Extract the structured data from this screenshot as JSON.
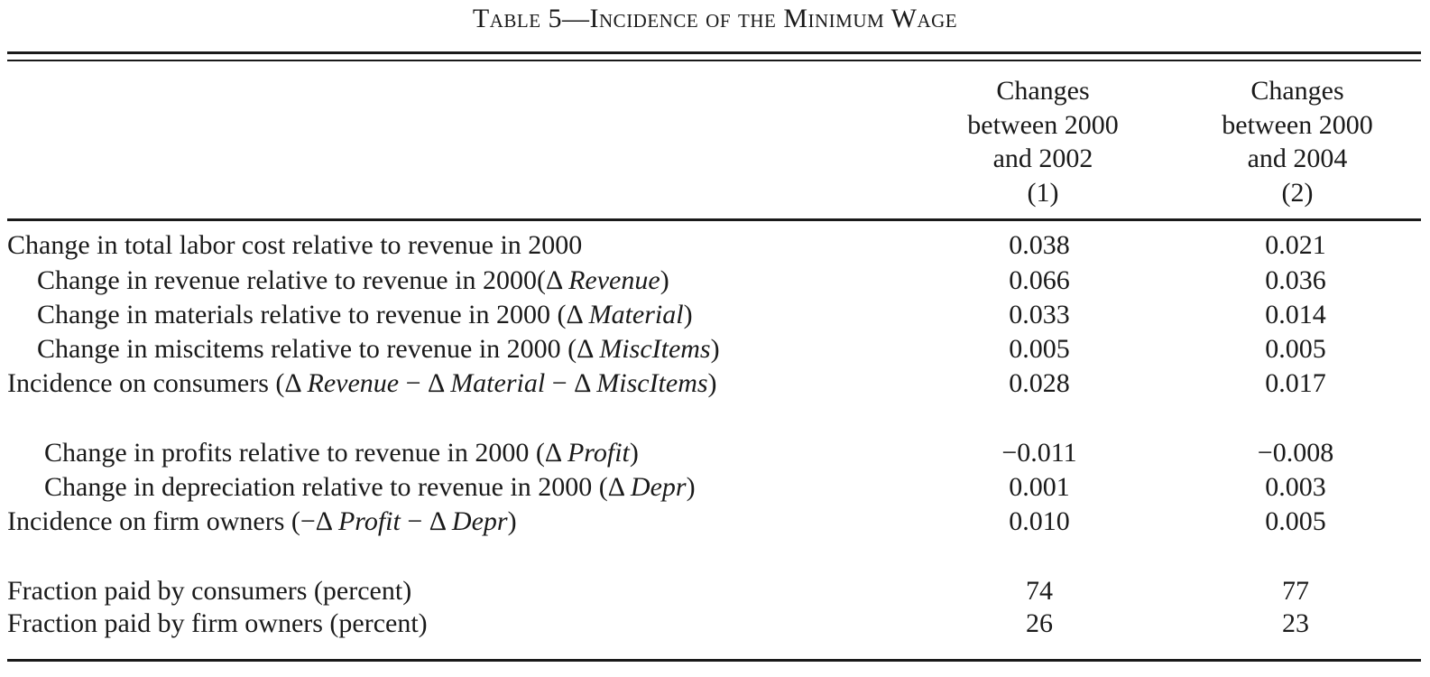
{
  "title": "Table 5—Incidence of the Minimum Wage",
  "columns": [
    {
      "lines": [
        "Changes",
        "between 2000",
        "and 2002",
        "(1)"
      ]
    },
    {
      "lines": [
        "Changes",
        "between 2000",
        "and 2004",
        "(2)"
      ]
    }
  ],
  "rows": [
    {
      "label": "Change in total labor cost relative to revenue in 2000",
      "v1": "0.038",
      "v2": "0.021"
    },
    {
      "label": "Change in revenue relative to revenue in 2000(Δ Revenue)",
      "v1": "0.066",
      "v2": "0.036"
    },
    {
      "label": "Change in materials relative to revenue in 2000 (Δ Material)",
      "v1": "0.033",
      "v2": "0.014"
    },
    {
      "label": "Change in miscitems relative to revenue in 2000 (Δ MiscItems)",
      "v1": "0.005",
      "v2": "0.005"
    },
    {
      "label": "Incidence on consumers (Δ Revenue − Δ Material − Δ MiscItems)",
      "v1": "0.028",
      "v2": "0.017"
    },
    {
      "label": "Change in profits relative to revenue in 2000 (Δ Profit)",
      "v1": "−0.011",
      "v2": "−0.008"
    },
    {
      "label": "Change in depreciation relative to revenue in 2000 (Δ Depr)",
      "v1": "0.001",
      "v2": "0.003"
    },
    {
      "label": "Incidence on firm owners (−Δ Profit − Δ Depr)",
      "v1": "0.010",
      "v2": "0.005"
    },
    {
      "label": "Fraction paid by consumers (percent)",
      "v1": "74",
      "v2": "77"
    },
    {
      "label": "Fraction paid by firm owners (percent)",
      "v1": "26",
      "v2": "23"
    }
  ]
}
